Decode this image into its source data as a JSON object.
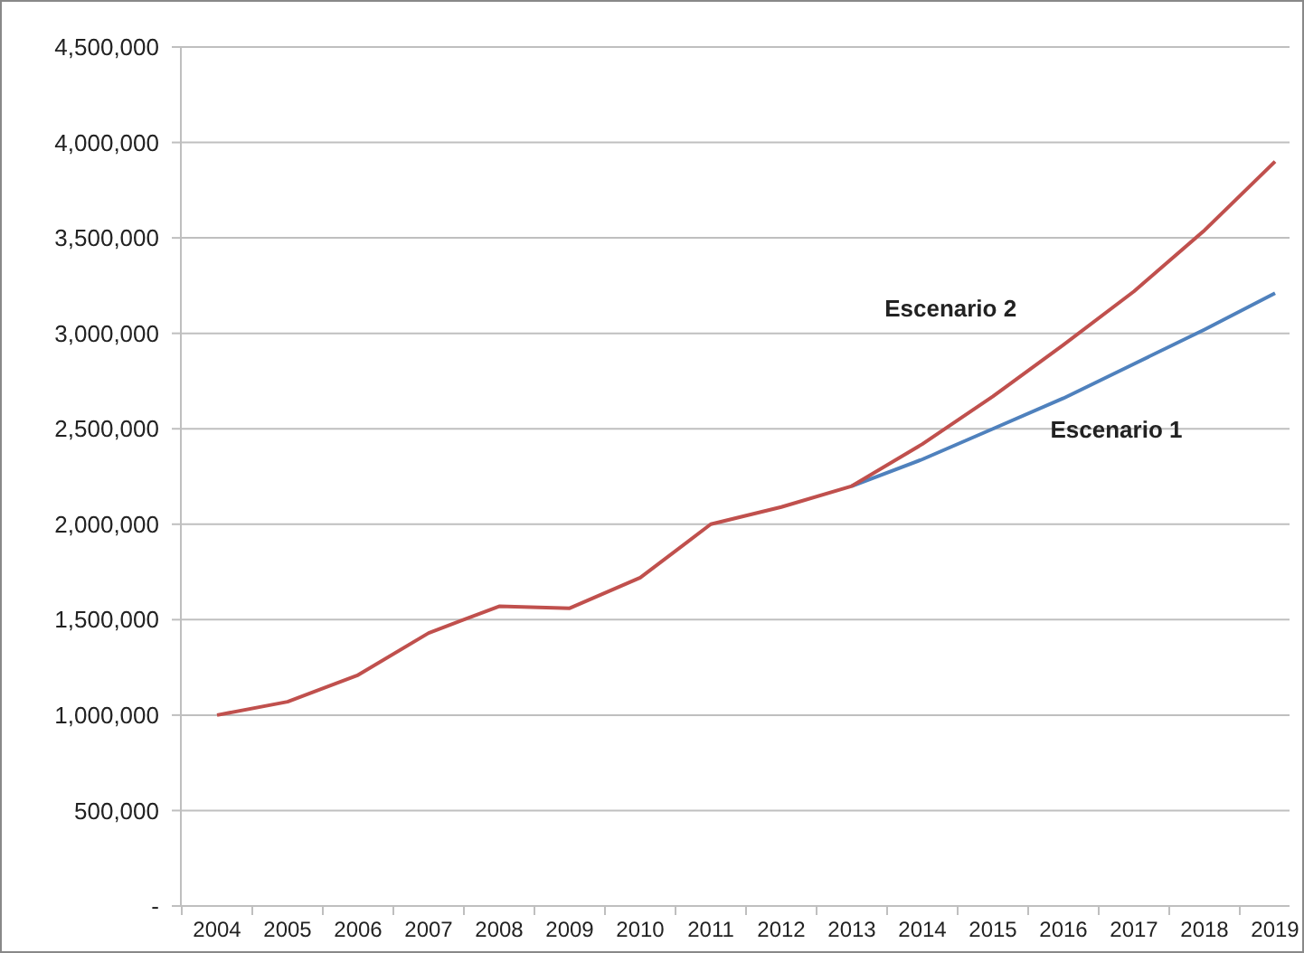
{
  "chart_data": {
    "type": "line",
    "categories": [
      "2004",
      "2005",
      "2006",
      "2007",
      "2008",
      "2009",
      "2010",
      "2011",
      "2012",
      "2013",
      "2014",
      "2015",
      "2016",
      "2017",
      "2018",
      "2019"
    ],
    "series": [
      {
        "name": "Escenario 1",
        "color": "#4f81bd",
        "values": [
          null,
          null,
          null,
          null,
          null,
          null,
          null,
          null,
          null,
          2200000,
          2340000,
          2500000,
          2660000,
          2840000,
          3020000,
          3210000
        ]
      },
      {
        "name": "Escenario 2",
        "color": "#c0504d",
        "values": [
          1000000,
          1070000,
          1210000,
          1430000,
          1570000,
          1560000,
          1720000,
          2000000,
          2090000,
          2200000,
          2420000,
          2670000,
          2940000,
          3220000,
          3540000,
          3900000
        ]
      }
    ],
    "ylim": [
      0,
      4500000
    ],
    "yticks": [
      {
        "value": 0,
        "label": "-"
      },
      {
        "value": 500000,
        "label": "500,000"
      },
      {
        "value": 1000000,
        "label": "1,000,000"
      },
      {
        "value": 1500000,
        "label": "1,500,000"
      },
      {
        "value": 2000000,
        "label": "2,000,000"
      },
      {
        "value": 2500000,
        "label": "2,500,000"
      },
      {
        "value": 3000000,
        "label": "3,000,000"
      },
      {
        "value": 3500000,
        "label": "3,500,000"
      },
      {
        "value": 4000000,
        "label": "4,000,000"
      },
      {
        "value": 4500000,
        "label": "4,500,000"
      }
    ],
    "grid": "y",
    "legend": false,
    "marker": "none",
    "line_style": "solid"
  }
}
